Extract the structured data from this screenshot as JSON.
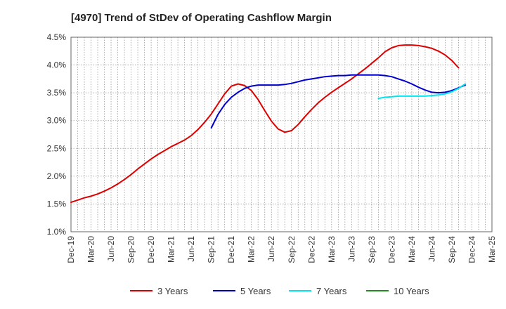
{
  "chart_data": {
    "type": "line",
    "title": "[4970]  Trend of StDev of Operating Cashflow Margin",
    "xlabel": "",
    "ylabel": "",
    "ylim": [
      1.0,
      4.5
    ],
    "y_ticks": [
      "1.0%",
      "1.5%",
      "2.0%",
      "2.5%",
      "3.0%",
      "3.5%",
      "4.0%",
      "4.5%"
    ],
    "y_tick_values": [
      1.0,
      1.5,
      2.0,
      2.5,
      3.0,
      3.5,
      4.0,
      4.5
    ],
    "x_ticks": [
      "Dec-19",
      "Mar-20",
      "Jun-20",
      "Sep-20",
      "Dec-20",
      "Mar-21",
      "Jun-21",
      "Sep-21",
      "Dec-21",
      "Mar-22",
      "Jun-22",
      "Sep-22",
      "Dec-22",
      "Mar-23",
      "Jun-23",
      "Sep-23",
      "Dec-23",
      "Mar-24",
      "Jun-24",
      "Sep-24",
      "Dec-24",
      "Mar-25"
    ],
    "x_range": [
      0,
      63
    ],
    "grid": true,
    "legend_position": "bottom",
    "series": [
      {
        "name": "3 Years",
        "color": "#dd0000",
        "start": 0,
        "values": [
          1.53,
          1.57,
          1.61,
          1.64,
          1.68,
          1.73,
          1.79,
          1.86,
          1.94,
          2.03,
          2.13,
          2.22,
          2.31,
          2.39,
          2.46,
          2.53,
          2.59,
          2.65,
          2.73,
          2.84,
          2.97,
          3.12,
          3.3,
          3.48,
          3.62,
          3.66,
          3.63,
          3.54,
          3.38,
          3.18,
          2.99,
          2.85,
          2.79,
          2.82,
          2.93,
          3.07,
          3.2,
          3.32,
          3.42,
          3.51,
          3.59,
          3.67,
          3.75,
          3.84,
          3.93,
          4.03,
          4.13,
          4.24,
          4.31,
          4.35,
          4.36,
          4.36,
          4.35,
          4.33,
          4.3,
          4.25,
          4.18,
          4.08,
          3.95
        ]
      },
      {
        "name": "5 Years",
        "color": "#0000cc",
        "start": 21,
        "values": [
          2.87,
          3.11,
          3.29,
          3.42,
          3.51,
          3.58,
          3.62,
          3.64,
          3.64,
          3.64,
          3.64,
          3.65,
          3.67,
          3.7,
          3.73,
          3.75,
          3.77,
          3.79,
          3.8,
          3.81,
          3.81,
          3.82,
          3.82,
          3.82,
          3.82,
          3.82,
          3.81,
          3.79,
          3.75,
          3.71,
          3.66,
          3.6,
          3.55,
          3.51,
          3.5,
          3.51,
          3.54,
          3.59,
          3.64
        ]
      },
      {
        "name": "7 Years",
        "color": "#00e5ee",
        "start": 46,
        "values": [
          3.4,
          3.42,
          3.43,
          3.44,
          3.44,
          3.44,
          3.44,
          3.44,
          3.45,
          3.46,
          3.48,
          3.52,
          3.58,
          3.66
        ]
      },
      {
        "name": "10 Years",
        "color": "#228b22",
        "start": 0,
        "values": []
      }
    ]
  }
}
